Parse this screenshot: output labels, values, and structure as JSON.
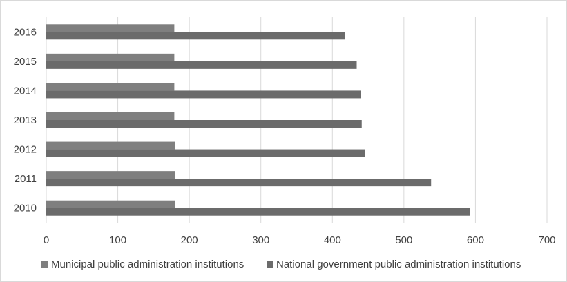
{
  "chart_data": {
    "type": "bar",
    "orientation": "horizontal",
    "categories": [
      "2010",
      "2011",
      "2012",
      "2013",
      "2014",
      "2015",
      "2016"
    ],
    "series": [
      {
        "name": "Municipal public administration institutions",
        "color": "#7f7f7f",
        "values": [
          180,
          180,
          180,
          179,
          179,
          179,
          179
        ]
      },
      {
        "name": "National government public administration institutions",
        "color": "#6b6b6b",
        "values": [
          592,
          538,
          446,
          441,
          440,
          434,
          418
        ]
      }
    ],
    "x_ticks": [
      "0",
      "100",
      "200",
      "300",
      "400",
      "500",
      "600",
      "700"
    ],
    "xlim": [
      0,
      700
    ],
    "grid": "vertical",
    "legend_position": "bottom-left"
  }
}
